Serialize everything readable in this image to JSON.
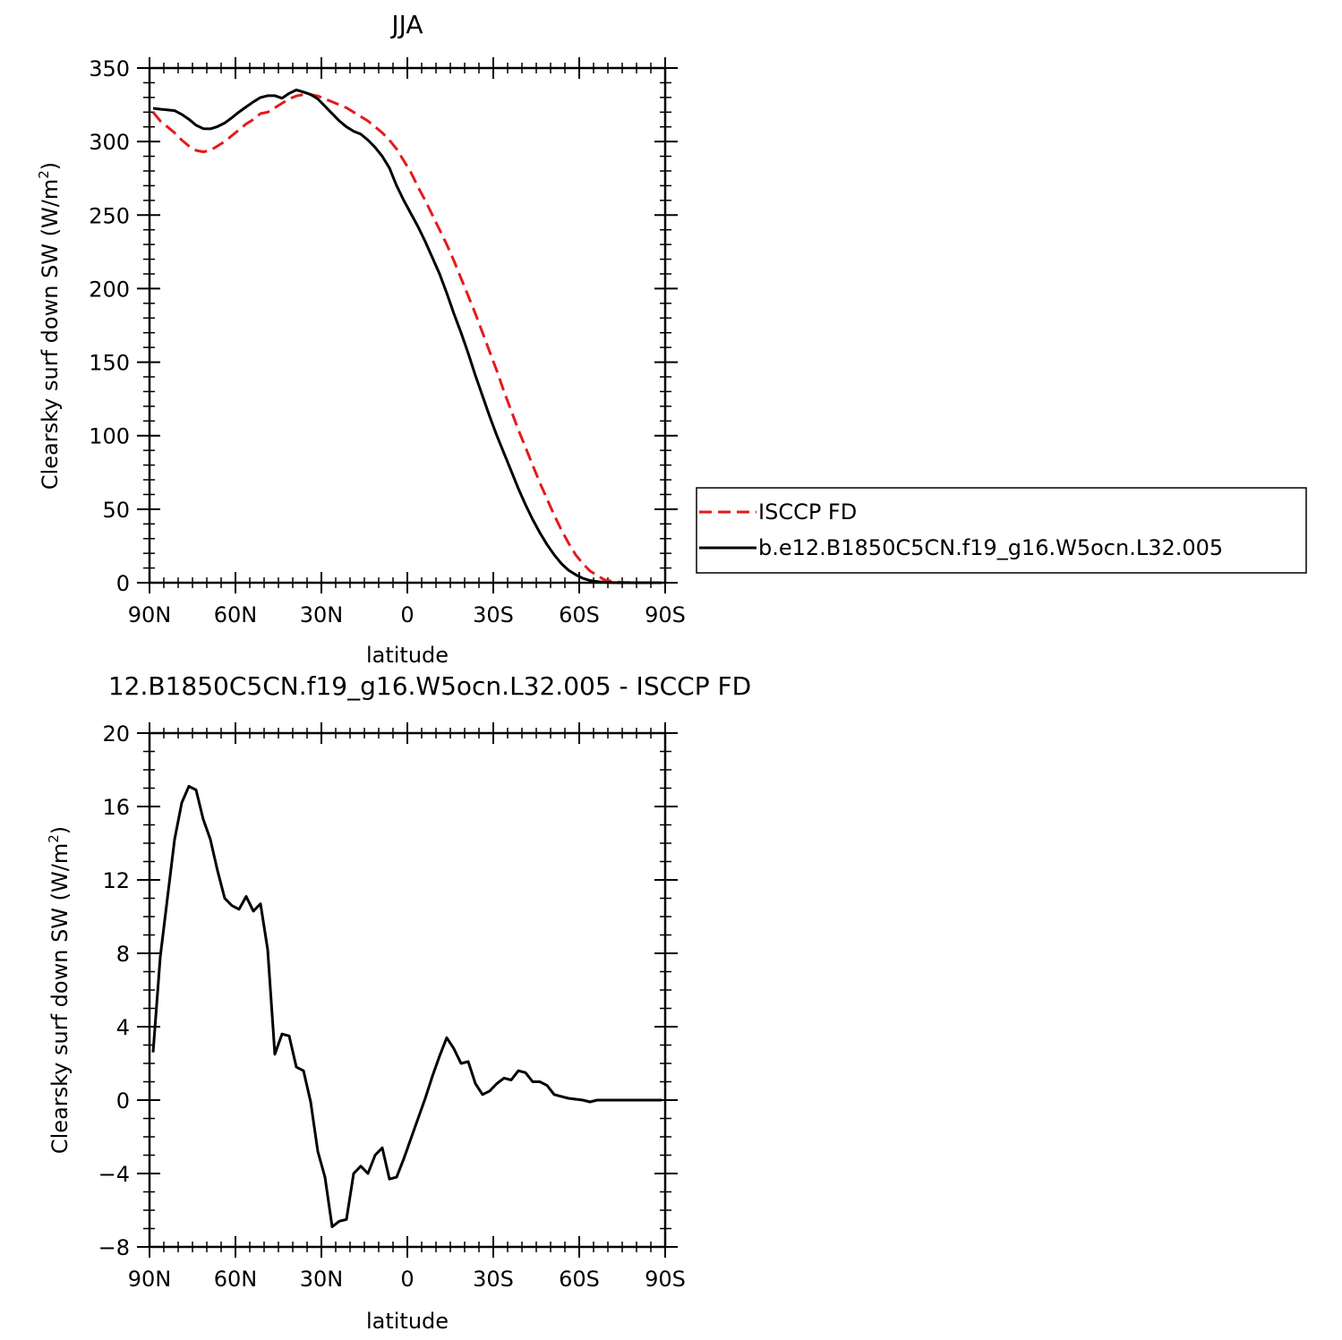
{
  "chart_data": [
    {
      "type": "line",
      "title": "JJA",
      "xlabel": "latitude",
      "ylabel": "Clearsky surf down SW (W/m",
      "ylabel_sup": "2",
      "ylabel_end": ")",
      "xlim": [
        90,
        -90
      ],
      "ylim": [
        0,
        350
      ],
      "xticks": [
        90,
        60,
        30,
        0,
        -30,
        -60,
        -90
      ],
      "xtick_labels": [
        "90N",
        "60N",
        "30N",
        "0",
        "30S",
        "60S",
        "90S"
      ],
      "yticks": [
        0,
        50,
        100,
        150,
        200,
        250,
        300,
        350
      ],
      "ytick_labels": [
        "0",
        "50",
        "100",
        "150",
        "200",
        "250",
        "300",
        "350"
      ],
      "legend_position": "right",
      "grid": false,
      "series": [
        {
          "name": "ISCCP FD",
          "color": "#e41a1c",
          "dash": "dashed",
          "x": [
            88.75,
            86.25,
            83.75,
            81.25,
            78.75,
            76.25,
            73.75,
            71.25,
            68.75,
            66.25,
            63.75,
            61.25,
            58.75,
            56.25,
            53.75,
            51.25,
            48.75,
            46.25,
            43.75,
            41.25,
            38.75,
            36.25,
            33.75,
            31.25,
            28.75,
            26.25,
            23.75,
            21.25,
            18.75,
            16.25,
            13.75,
            11.25,
            8.75,
            6.25,
            3.75,
            1.25,
            -1.25,
            -3.75,
            -6.25,
            -8.75,
            -11.25,
            -13.75,
            -16.25,
            -18.75,
            -21.25,
            -23.75,
            -26.25,
            -28.75,
            -31.25,
            -33.75,
            -36.25,
            -38.75,
            -41.25,
            -43.75,
            -46.25,
            -48.75,
            -51.25,
            -53.75,
            -56.25,
            -58.75,
            -61.25,
            -63.75,
            -66.25,
            -68.75,
            -71.25,
            -73.75,
            -76.25,
            -78.75,
            -81.25,
            -83.75,
            -86.25,
            -88.75
          ],
          "y": [
            320,
            314,
            310,
            306,
            301,
            297,
            294,
            293,
            294,
            297,
            300,
            304,
            308,
            312,
            315,
            319,
            320,
            323,
            326,
            329,
            331,
            332,
            332,
            331,
            329,
            327,
            325,
            323,
            320,
            317,
            314,
            310,
            306,
            301,
            295,
            287,
            279,
            269,
            260,
            250,
            240,
            230,
            219,
            207,
            195,
            183,
            170,
            157,
            144,
            130,
            117,
            104,
            92,
            80,
            68,
            57,
            46,
            36,
            27,
            19,
            13,
            8,
            5,
            2,
            1,
            0.5,
            0.2,
            0.1,
            0,
            0,
            0,
            0
          ]
        },
        {
          "name": "b.e12.B1850C5CN.f19_g16.W5ocn.L32.005",
          "color": "#000000",
          "dash": "solid",
          "x": [
            88.75,
            86.25,
            83.75,
            81.25,
            78.75,
            76.25,
            73.75,
            71.25,
            68.75,
            66.25,
            63.75,
            61.25,
            58.75,
            56.25,
            53.75,
            51.25,
            48.75,
            46.25,
            43.75,
            41.25,
            38.75,
            36.25,
            33.75,
            31.25,
            28.75,
            26.25,
            23.75,
            21.25,
            18.75,
            16.25,
            13.75,
            11.25,
            8.75,
            6.25,
            3.75,
            1.25,
            -1.25,
            -3.75,
            -6.25,
            -8.75,
            -11.25,
            -13.75,
            -16.25,
            -18.75,
            -21.25,
            -23.75,
            -26.25,
            -28.75,
            -31.25,
            -33.75,
            -36.25,
            -38.75,
            -41.25,
            -43.75,
            -46.25,
            -48.75,
            -51.25,
            -53.75,
            -56.25,
            -58.75,
            -61.25,
            -63.75,
            -66.25,
            -68.75,
            -71.25,
            -73.75,
            -76.25,
            -78.75,
            -81.25,
            -83.75,
            -86.25,
            -88.75
          ],
          "y": [
            322.6,
            322,
            321.5,
            321,
            318.5,
            315.2,
            311.1,
            308.8,
            308.7,
            310.2,
            312.6,
            316.2,
            320.1,
            323.6,
            327,
            330,
            331.2,
            331.2,
            329.5,
            332.8,
            335.1,
            333.7,
            332,
            329,
            324,
            319,
            314,
            310,
            307,
            305,
            301,
            296,
            290,
            282,
            270,
            260,
            251,
            242,
            232,
            221,
            210,
            197,
            183,
            170,
            156,
            141,
            127,
            113,
            100,
            88,
            76,
            64,
            53,
            43,
            34,
            26,
            19,
            13,
            8.5,
            5.5,
            3,
            1.5,
            0.8,
            0.3,
            0.1,
            0,
            0,
            0,
            0,
            0,
            0,
            0
          ]
        }
      ]
    },
    {
      "type": "line",
      "title": "12.B1850C5CN.f19_g16.W5ocn.L32.005 - ISCCP FD",
      "xlabel": "latitude",
      "ylabel": "Clearsky surf down SW (W/m",
      "ylabel_sup": "2",
      "ylabel_end": ")",
      "xlim": [
        90,
        -90
      ],
      "ylim": [
        -8,
        20
      ],
      "xticks": [
        90,
        60,
        30,
        0,
        -30,
        -60,
        -90
      ],
      "xtick_labels": [
        "90N",
        "60N",
        "30N",
        "0",
        "30S",
        "60S",
        "90S"
      ],
      "yticks": [
        -8,
        -4,
        0,
        4,
        8,
        12,
        16,
        20
      ],
      "ytick_labels": [
        "−8",
        "−4",
        "0",
        "4",
        "8",
        "12",
        "16",
        "20"
      ],
      "grid": false,
      "series": [
        {
          "color": "#000000",
          "dash": "solid",
          "x": [
            88.75,
            86.25,
            83.75,
            81.25,
            78.75,
            76.25,
            73.75,
            71.25,
            68.75,
            66.25,
            63.75,
            61.25,
            58.75,
            56.25,
            53.75,
            51.25,
            48.75,
            46.25,
            43.75,
            41.25,
            38.75,
            36.25,
            33.75,
            31.25,
            28.75,
            26.25,
            23.75,
            21.25,
            18.75,
            16.25,
            13.75,
            11.25,
            8.75,
            6.25,
            3.75,
            1.25,
            -1.25,
            -3.75,
            -6.25,
            -8.75,
            -11.25,
            -13.75,
            -16.25,
            -18.75,
            -21.25,
            -23.75,
            -26.25,
            -28.75,
            -31.25,
            -33.75,
            -36.25,
            -38.75,
            -41.25,
            -43.75,
            -46.25,
            -48.75,
            -51.25,
            -53.75,
            -56.25,
            -58.75,
            -61.25,
            -63.75,
            -66.25,
            -68.75,
            -71.25,
            -73.75,
            -76.25,
            -78.75,
            -81.25,
            -83.75,
            -86.25,
            -88.75
          ],
          "y": [
            2.6,
            7.8,
            11.0,
            14.2,
            16.2,
            17.1,
            16.9,
            15.3,
            14.2,
            12.5,
            11.0,
            10.6,
            10.4,
            11.1,
            10.3,
            10.7,
            8.2,
            2.5,
            3.6,
            3.5,
            1.8,
            1.6,
            -0.1,
            -2.8,
            -4.2,
            -6.9,
            -6.6,
            -6.5,
            -4.0,
            -3.6,
            -4.0,
            -3.0,
            -2.6,
            -4.3,
            -4.2,
            -3.2,
            -2.1,
            -1.0,
            0.1,
            1.3,
            2.4,
            3.4,
            2.8,
            2.0,
            2.1,
            0.9,
            0.3,
            0.5,
            0.9,
            1.2,
            1.1,
            1.6,
            1.5,
            1.0,
            1.0,
            0.8,
            0.3,
            0.2,
            0.1,
            0.05,
            0.0,
            -0.1,
            0.0,
            0.0,
            0.0,
            0.0,
            0.0,
            0.0,
            0.0,
            0.0,
            0.0,
            0.0
          ]
        }
      ]
    }
  ]
}
